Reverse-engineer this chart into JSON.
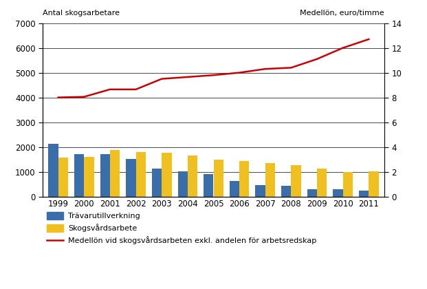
{
  "years": [
    1999,
    2000,
    2001,
    2002,
    2003,
    2004,
    2005,
    2006,
    2007,
    2008,
    2009,
    2010,
    2011
  ],
  "travarutillverkning": [
    2120,
    1700,
    1700,
    1520,
    1130,
    1010,
    900,
    620,
    460,
    420,
    290,
    290,
    240
  ],
  "skogsvardsarbete": [
    1560,
    1600,
    1870,
    1800,
    1780,
    1650,
    1490,
    1430,
    1350,
    1280,
    1130,
    1000,
    1010
  ],
  "medelloen": [
    8.0,
    8.05,
    8.65,
    8.65,
    9.5,
    9.65,
    9.8,
    10.0,
    10.3,
    10.4,
    11.1,
    12.0,
    12.7
  ],
  "bar_color_blue": "#3a6eab",
  "bar_color_yellow": "#f0c020",
  "line_color": "#cc0000",
  "left_ylabel": "Antal skogsarbetare",
  "right_ylabel": "Medellön, euro/timme",
  "ylim_left": [
    0,
    7000
  ],
  "ylim_right": [
    0,
    14
  ],
  "yticks_left": [
    0,
    1000,
    2000,
    3000,
    4000,
    5000,
    6000,
    7000
  ],
  "yticks_right": [
    0,
    2,
    4,
    6,
    8,
    10,
    12,
    14
  ],
  "legend_labels": [
    "Trävarutillverkning",
    "Skogsvårdsarbete",
    "Medellön vid skogsvårdsarbeten exkl. andelen för arbetsredskap"
  ],
  "background_color": "#ffffff",
  "bar_width": 0.38
}
